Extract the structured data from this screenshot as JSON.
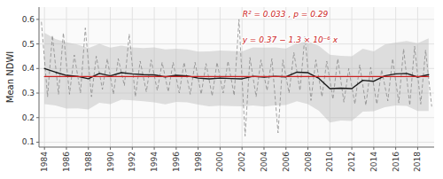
{
  "chart_data": {
    "type": "line",
    "y_label": "Mean NDWI",
    "xlim": [
      1983.5,
      2019.5
    ],
    "ylim": [
      0.08,
      0.65
    ],
    "xticks": [
      1984,
      1986,
      1988,
      1990,
      1992,
      1994,
      1996,
      1998,
      2000,
      2002,
      2004,
      2006,
      2008,
      2010,
      2012,
      2014,
      2016,
      2018
    ],
    "yticks": [
      0.1,
      0.2,
      0.3,
      0.4,
      0.5,
      0.6
    ],
    "grid": true,
    "x": [
      1984,
      1985,
      1986,
      1987,
      1988,
      1989,
      1990,
      1991,
      1992,
      1993,
      1994,
      1995,
      1996,
      1997,
      1998,
      1999,
      2000,
      2001,
      2002,
      2003,
      2004,
      2005,
      2006,
      2007,
      2008,
      2009,
      2010,
      2011,
      2012,
      2013,
      2014,
      2015,
      2016,
      2017,
      2018,
      2019
    ],
    "series": [
      {
        "type": "band",
        "color": "#bbbbbb",
        "lower": [
          0.255,
          0.25,
          0.237,
          0.238,
          0.233,
          0.26,
          0.255,
          0.273,
          0.27,
          0.267,
          0.262,
          0.254,
          0.264,
          0.262,
          0.253,
          0.246,
          0.249,
          0.247,
          0.246,
          0.25,
          0.245,
          0.25,
          0.251,
          0.267,
          0.255,
          0.228,
          0.18,
          0.188,
          0.186,
          0.224,
          0.226,
          0.242,
          0.25,
          0.248,
          0.227,
          0.227
        ],
        "upper": [
          0.545,
          0.52,
          0.507,
          0.498,
          0.483,
          0.5,
          0.485,
          0.493,
          0.486,
          0.483,
          0.486,
          0.478,
          0.48,
          0.478,
          0.469,
          0.47,
          0.473,
          0.471,
          0.47,
          0.486,
          0.485,
          0.486,
          0.481,
          0.503,
          0.511,
          0.492,
          0.456,
          0.452,
          0.45,
          0.48,
          0.47,
          0.498,
          0.506,
          0.512,
          0.503,
          0.523
        ]
      },
      {
        "type": "line",
        "color": "#888888",
        "line_style": "dashed",
        "x": [
          1983.72,
          1984.28,
          1984.72,
          1985.28,
          1985.72,
          1986.28,
          1986.72,
          1987.28,
          1987.72,
          1988.28,
          1988.72,
          1989.28,
          1989.72,
          1990.28,
          1990.72,
          1991.28,
          1991.72,
          1992.28,
          1992.72,
          1993.28,
          1993.72,
          1994.28,
          1994.72,
          1995.28,
          1995.72,
          1996.28,
          1996.72,
          1997.28,
          1997.72,
          1998.28,
          1998.72,
          1999.28,
          1999.72,
          2000.28,
          2000.72,
          2001.28,
          2001.72,
          2002.28,
          2002.72,
          2003.28,
          2003.72,
          2004.28,
          2004.72,
          2005.28,
          2005.72,
          2006.28,
          2006.72,
          2007.28,
          2007.72,
          2008.28,
          2008.72,
          2009.28,
          2009.72,
          2010.28,
          2010.72,
          2011.28,
          2011.72,
          2012.28,
          2012.72,
          2013.28,
          2013.72,
          2014.28,
          2014.72,
          2015.28,
          2015.72,
          2016.28,
          2016.72,
          2017.28,
          2017.72,
          2018.28,
          2018.72,
          2019.28
        ],
        "values": [
          0.59,
          0.285,
          0.535,
          0.295,
          0.545,
          0.295,
          0.455,
          0.3,
          0.565,
          0.285,
          0.45,
          0.315,
          0.44,
          0.295,
          0.44,
          0.33,
          0.54,
          0.285,
          0.43,
          0.305,
          0.435,
          0.31,
          0.425,
          0.305,
          0.425,
          0.3,
          0.425,
          0.295,
          0.425,
          0.295,
          0.42,
          0.288,
          0.425,
          0.3,
          0.43,
          0.29,
          0.6,
          0.125,
          0.445,
          0.285,
          0.435,
          0.31,
          0.44,
          0.138,
          0.435,
          0.3,
          0.465,
          0.31,
          0.53,
          0.27,
          0.435,
          0.285,
          0.43,
          0.275,
          0.44,
          0.263,
          0.4,
          0.255,
          0.415,
          0.25,
          0.405,
          0.255,
          0.395,
          0.268,
          0.44,
          0.26,
          0.48,
          0.25,
          0.49,
          0.255,
          0.475,
          0.245
        ]
      },
      {
        "type": "line",
        "color": "#1a1a1a",
        "values": [
          0.4,
          0.385,
          0.372,
          0.368,
          0.358,
          0.38,
          0.37,
          0.383,
          0.378,
          0.375,
          0.374,
          0.366,
          0.372,
          0.37,
          0.361,
          0.358,
          0.361,
          0.359,
          0.358,
          0.368,
          0.365,
          0.368,
          0.366,
          0.385,
          0.383,
          0.36,
          0.318,
          0.32,
          0.318,
          0.352,
          0.348,
          0.37,
          0.378,
          0.38,
          0.365,
          0.375
        ]
      },
      {
        "type": "line",
        "color": "#cc2222",
        "x": [
          1984,
          2019
        ],
        "values": [
          0.3674208,
          0.3673753
        ]
      }
    ],
    "annotations": [
      {
        "text": "R² = 0.033 , p = 0.29",
        "color": "#cc2222"
      },
      {
        "text": "y = 0.37 − 1.3 × 10⁻⁶ x",
        "color": "#cc2222"
      }
    ]
  }
}
